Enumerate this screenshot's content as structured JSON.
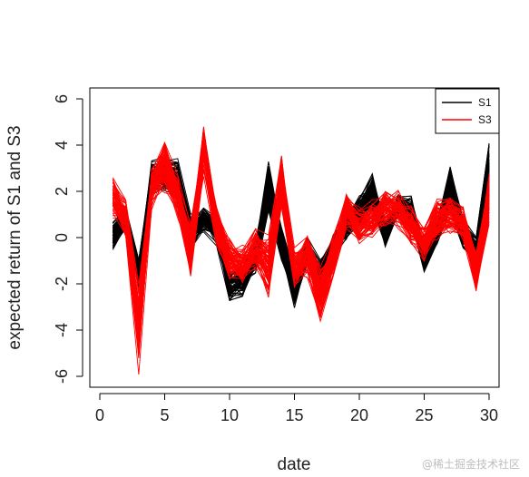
{
  "chart_data": {
    "type": "line",
    "xlabel": "date",
    "ylabel": "expected return of S1 and S3",
    "xlim": [
      0,
      30
    ],
    "ylim": [
      -6.5,
      6.5
    ],
    "xticks": [
      0,
      5,
      10,
      15,
      20,
      25,
      30
    ],
    "yticks": [
      -6,
      -4,
      -2,
      0,
      2,
      4,
      6
    ],
    "x": [
      1,
      2,
      3,
      4,
      5,
      6,
      7,
      8,
      9,
      10,
      11,
      12,
      13,
      14,
      15,
      16,
      17,
      18,
      19,
      20,
      21,
      22,
      23,
      24,
      25,
      26,
      27,
      28,
      29,
      30
    ],
    "legend_position": "top-right",
    "series": [
      {
        "name": "S1",
        "color": "#000000",
        "values": [
          0.1,
          0.9,
          -1.5,
          2.6,
          2.8,
          2.6,
          0.2,
          0.8,
          0.3,
          -2.0,
          -1.8,
          -0.8,
          2.3,
          -0.2,
          -2.2,
          -0.6,
          -1.6,
          -0.4,
          0.6,
          1.2,
          2.0,
          0.2,
          1.5,
          1.2,
          -0.9,
          0.3,
          2.2,
          0.2,
          -0.5,
          3.0
        ],
        "spread": [
          0.6,
          0.5,
          0.6,
          0.7,
          0.7,
          0.8,
          0.8,
          0.5,
          0.6,
          0.7,
          0.7,
          0.8,
          1.0,
          0.7,
          0.8,
          0.6,
          0.7,
          0.6,
          0.6,
          0.6,
          0.8,
          0.6,
          0.5,
          0.6,
          0.6,
          0.6,
          1.0,
          0.6,
          0.6,
          1.2
        ]
      },
      {
        "name": "S3",
        "color": "#ff0000",
        "values": [
          1.7,
          0.8,
          -4.0,
          2.2,
          3.0,
          1.8,
          -0.6,
          4.0,
          0.5,
          -1.0,
          -1.2,
          -0.5,
          -1.2,
          2.4,
          -1.4,
          -0.8,
          -2.5,
          -0.8,
          1.2,
          0.5,
          0.8,
          1.3,
          1.2,
          0.5,
          -0.2,
          0.8,
          1.0,
          0.6,
          -1.5,
          1.8
        ],
        "spread": [
          0.9,
          0.8,
          1.9,
          0.9,
          1.1,
          0.9,
          1.2,
          1.3,
          0.9,
          0.9,
          0.9,
          0.9,
          1.3,
          1.2,
          0.9,
          0.9,
          1.2,
          0.9,
          0.8,
          0.8,
          0.8,
          0.8,
          0.8,
          0.8,
          0.8,
          1.0,
          0.8,
          0.8,
          0.9,
          1.2
        ]
      }
    ]
  },
  "watermark": "@稀土掘金技术社区"
}
